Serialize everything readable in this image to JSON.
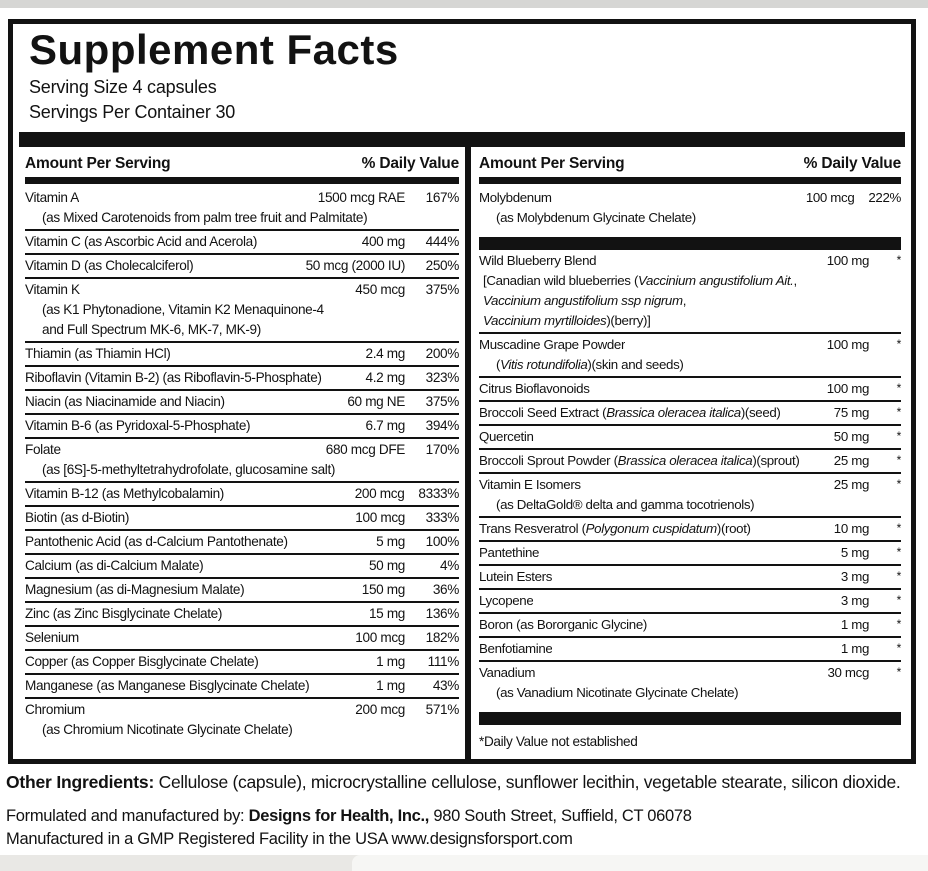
{
  "colors": {
    "text": "#121212",
    "bar": "#121212",
    "page_bg": "#ffffff",
    "strip": "#d6d6d4"
  },
  "label": {
    "title": "Supplement Facts",
    "serving_size": "Serving Size 4 capsules",
    "servings_per_container": "Servings Per Container 30",
    "column_header": {
      "amount": "Amount Per Serving",
      "dv": "% Daily Value"
    }
  },
  "columns": [
    {
      "side": "left",
      "rows": [
        {
          "name": [
            {
              "t": "Vitamin A"
            }
          ],
          "amount": "1500 mcg RAE",
          "dv": "167%",
          "sub": [
            [
              {
                "t": "(as Mixed Carotenoids from palm tree fruit and Palmitate)"
              }
            ]
          ]
        },
        {
          "name": [
            {
              "t": "Vitamin C (as Ascorbic Acid and Acerola)"
            }
          ],
          "amount": "400 mg",
          "dv": "444%"
        },
        {
          "name": [
            {
              "t": "Vitamin D (as Cholecalciferol)"
            }
          ],
          "amount": "50 mcg (2000 IU)",
          "dv": "250%"
        },
        {
          "name": [
            {
              "t": "Vitamin K"
            }
          ],
          "amount": "450 mcg",
          "dv": "375%",
          "sub": [
            [
              {
                "t": "(as K1 Phytonadione, Vitamin K2 Menaquinone-4"
              }
            ],
            [
              {
                "t": "and Full Spectrum MK-6, MK-7, MK-9)"
              }
            ]
          ]
        },
        {
          "name": [
            {
              "t": "Thiamin (as Thiamin HCl)"
            }
          ],
          "amount": "2.4 mg",
          "dv": "200%"
        },
        {
          "name": [
            {
              "t": "Riboflavin (Vitamin B-2) (as Riboflavin-5-Phosphate)"
            }
          ],
          "amount": "4.2 mg",
          "dv": "323%"
        },
        {
          "name": [
            {
              "t": "Niacin (as Niacinamide and Niacin)"
            }
          ],
          "amount": "60 mg NE",
          "dv": "375%"
        },
        {
          "name": [
            {
              "t": "Vitamin B-6 (as Pyridoxal-5-Phosphate)"
            }
          ],
          "amount": "6.7 mg",
          "dv": "394%"
        },
        {
          "name": [
            {
              "t": "Folate"
            }
          ],
          "amount": "680 mcg DFE",
          "dv": "170%",
          "sub": [
            [
              {
                "t": "(as [6S]-5-methyltetrahydrofolate, glucosamine salt)"
              }
            ]
          ]
        },
        {
          "name": [
            {
              "t": "Vitamin B-12 (as Methylcobalamin)"
            }
          ],
          "amount": "200 mcg",
          "dv": "8333%"
        },
        {
          "name": [
            {
              "t": "Biotin (as d-Biotin)"
            }
          ],
          "amount": "100 mcg",
          "dv": "333%"
        },
        {
          "name": [
            {
              "t": "Pantothenic Acid (as d-Calcium Pantothenate)"
            }
          ],
          "amount": "5 mg",
          "dv": "100%"
        },
        {
          "name": [
            {
              "t": "Calcium (as di-Calcium Malate)"
            }
          ],
          "amount": "50 mg",
          "dv": "4%"
        },
        {
          "name": [
            {
              "t": "Magnesium (as di-Magnesium Malate)"
            }
          ],
          "amount": "150 mg",
          "dv": "36%"
        },
        {
          "name": [
            {
              "t": "Zinc (as Zinc Bisglycinate Chelate)"
            }
          ],
          "amount": "15 mg",
          "dv": "136%"
        },
        {
          "name": [
            {
              "t": "Selenium"
            }
          ],
          "amount": "100 mcg",
          "dv": "182%"
        },
        {
          "name": [
            {
              "t": "Copper (as Copper Bisglycinate Chelate)"
            }
          ],
          "amount": "1 mg",
          "dv": "111%"
        },
        {
          "name": [
            {
              "t": "Manganese (as Manganese Bisglycinate Chelate)"
            }
          ],
          "amount": "1 mg",
          "dv": "43%"
        },
        {
          "name": [
            {
              "t": "Chromium"
            }
          ],
          "amount": "200 mcg",
          "dv": "571%",
          "sub": [
            [
              {
                "t": "(as Chromium Nicotinate Glycinate Chelate)"
              }
            ]
          ]
        }
      ]
    },
    {
      "side": "right",
      "rows": [
        {
          "name": [
            {
              "t": "Molybdenum"
            }
          ],
          "amount": "100 mcg",
          "dv": "222%",
          "sub": [
            [
              {
                "t": "(as Molybdenum Glycinate Chelate)"
              }
            ]
          ]
        },
        {
          "type": "bar"
        },
        {
          "name": [
            {
              "t": "Wild Blueberry Blend"
            }
          ],
          "amount": "100 mg",
          "dv": "*",
          "sub_flush": true,
          "sub": [
            [
              {
                "t": "[Canadian wild blueberries ("
              },
              {
                "t": "Vaccinium angustifolium Ait.",
                "i": true
              },
              {
                "t": ","
              }
            ],
            [
              {
                "t": "Vaccinium angustifolium ssp nigrum",
                "i": true
              },
              {
                "t": ","
              }
            ],
            [
              {
                "t": "Vaccinium myrtilloides",
                "i": true
              },
              {
                "t": ")(berry)]"
              }
            ]
          ]
        },
        {
          "name": [
            {
              "t": "Muscadine Grape Powder"
            }
          ],
          "amount": "100 mg",
          "dv": "*",
          "sub": [
            [
              {
                "t": "("
              },
              {
                "t": "Vitis rotundifolia",
                "i": true
              },
              {
                "t": ")(skin and seeds)"
              }
            ]
          ]
        },
        {
          "name": [
            {
              "t": "Citrus Bioflavonoids"
            }
          ],
          "amount": "100 mg",
          "dv": "*"
        },
        {
          "name": [
            {
              "t": "Broccoli Seed Extract ("
            },
            {
              "t": "Brassica oleracea italica",
              "i": true
            },
            {
              "t": ")(seed)"
            }
          ],
          "amount": "75 mg",
          "dv": "*"
        },
        {
          "name": [
            {
              "t": "Quercetin"
            }
          ],
          "amount": "50 mg",
          "dv": "*"
        },
        {
          "name": [
            {
              "t": "Broccoli Sprout Powder ("
            },
            {
              "t": "Brassica oleracea italica",
              "i": true
            },
            {
              "t": ")(sprout)"
            }
          ],
          "amount": "25 mg",
          "dv": "*"
        },
        {
          "name": [
            {
              "t": "Vitamin E Isomers"
            }
          ],
          "amount": "25 mg",
          "dv": "*",
          "sub": [
            [
              {
                "t": "(as DeltaGold® delta and gamma tocotrienols)"
              }
            ]
          ]
        },
        {
          "name": [
            {
              "t": "Trans Resveratrol ("
            },
            {
              "t": "Polygonum cuspidatum",
              "i": true
            },
            {
              "t": ")(root)"
            }
          ],
          "amount": "10 mg",
          "dv": "*"
        },
        {
          "name": [
            {
              "t": "Pantethine"
            }
          ],
          "amount": "5 mg",
          "dv": "*"
        },
        {
          "name": [
            {
              "t": "Lutein Esters"
            }
          ],
          "amount": "3 mg",
          "dv": "*"
        },
        {
          "name": [
            {
              "t": "Lycopene"
            }
          ],
          "amount": "3 mg",
          "dv": "*"
        },
        {
          "name": [
            {
              "t": "Boron (as Bororganic Glycine)"
            }
          ],
          "amount": "1 mg",
          "dv": "*"
        },
        {
          "name": [
            {
              "t": "Benfotiamine"
            }
          ],
          "amount": "1 mg",
          "dv": "*"
        },
        {
          "name": [
            {
              "t": "Vanadium"
            }
          ],
          "amount": "30 mcg",
          "dv": "*",
          "sub": [
            [
              {
                "t": "(as Vanadium Nicotinate Glycinate Chelate)"
              }
            ]
          ]
        },
        {
          "type": "bar"
        },
        {
          "type": "note",
          "text": "*Daily Value not established"
        }
      ]
    }
  ],
  "footer": {
    "other_ingredients_label": "Other Ingredients:",
    "other_ingredients_text": " Cellulose (capsule), microcrystalline cellulose, sunflower lecithin, vegetable stearate, silicon dioxide.",
    "line1_pre": "Formulated and manufactured by: ",
    "line1_bold": "Designs for Health, Inc.,",
    "line1_post": " 980 South Street, Suffield, CT 06078",
    "line2": "Manufactured in a GMP Registered Facility in the USA  www.designsforsport.com"
  }
}
